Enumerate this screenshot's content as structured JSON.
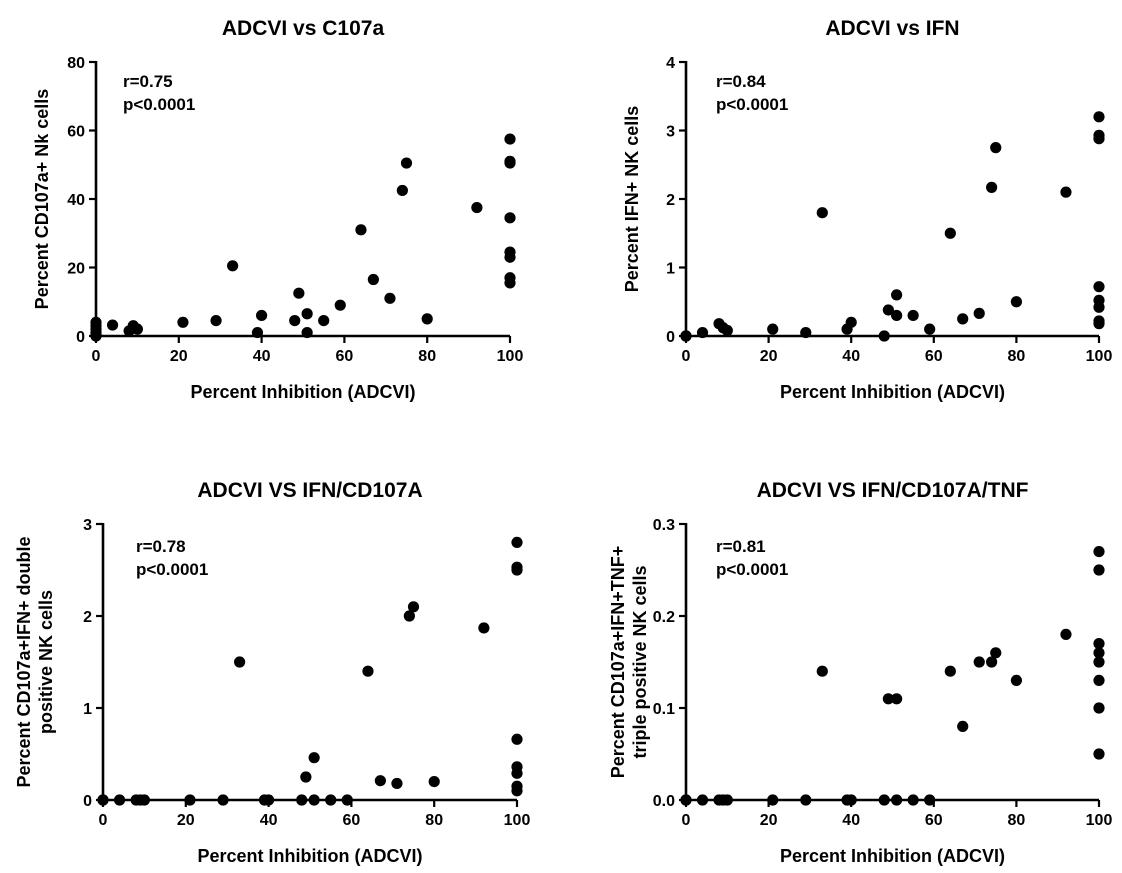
{
  "chart_data": [
    {
      "type": "scatter",
      "title": "ADCVI vs C107a",
      "xlabel": "Percent Inhibition (ADCVI)",
      "ylabel": [
        "Percent CD107a+ Nk cells"
      ],
      "xlim": [
        0,
        100
      ],
      "ylim": [
        0,
        80
      ],
      "xticks": [
        "0",
        "20",
        "40",
        "60",
        "80",
        "100"
      ],
      "yticks": [
        "0",
        "20",
        "40",
        "60",
        "80"
      ],
      "annotation": [
        "r=0.75",
        "p<0.0001"
      ],
      "points": [
        [
          0,
          4
        ],
        [
          0,
          3
        ],
        [
          0,
          2
        ],
        [
          0,
          1
        ],
        [
          0,
          0.5
        ],
        [
          0,
          0
        ],
        [
          4,
          3.2
        ],
        [
          8,
          1.5
        ],
        [
          9,
          3
        ],
        [
          10,
          2
        ],
        [
          21,
          4
        ],
        [
          29,
          4.5
        ],
        [
          33,
          20.5
        ],
        [
          39,
          1
        ],
        [
          40,
          6
        ],
        [
          48,
          4.5
        ],
        [
          49,
          12.5
        ],
        [
          51,
          6.5
        ],
        [
          51,
          1
        ],
        [
          55,
          4.5
        ],
        [
          59,
          9
        ],
        [
          64,
          31
        ],
        [
          67,
          16.5
        ],
        [
          71,
          11
        ],
        [
          74,
          42.5
        ],
        [
          75,
          50.5
        ],
        [
          80,
          5
        ],
        [
          92,
          37.5
        ],
        [
          100,
          57.5
        ],
        [
          100,
          51
        ],
        [
          100,
          50.5
        ],
        [
          100,
          34.5
        ],
        [
          100,
          24.5
        ],
        [
          100,
          23
        ],
        [
          100,
          17
        ],
        [
          100,
          15.5
        ]
      ]
    },
    {
      "type": "scatter",
      "title": "ADCVI vs IFN",
      "xlabel": "Percent Inhibition (ADCVI)",
      "ylabel": [
        "Percent IFN+ NK cells"
      ],
      "xlim": [
        0,
        100
      ],
      "ylim": [
        0,
        4
      ],
      "xticks": [
        "0",
        "20",
        "40",
        "60",
        "80",
        "100"
      ],
      "yticks": [
        "0",
        "1",
        "2",
        "3",
        "4"
      ],
      "annotation": [
        "r=0.84",
        "p<0.0001"
      ],
      "points": [
        [
          0,
          0
        ],
        [
          0,
          0
        ],
        [
          4,
          0.05
        ],
        [
          8,
          0.18
        ],
        [
          9,
          0.12
        ],
        [
          10,
          0.08
        ],
        [
          21,
          0.1
        ],
        [
          29,
          0.05
        ],
        [
          33,
          1.8
        ],
        [
          39,
          0.1
        ],
        [
          40,
          0.2
        ],
        [
          48,
          0
        ],
        [
          49,
          0.38
        ],
        [
          51,
          0.6
        ],
        [
          51,
          0.3
        ],
        [
          55,
          0.3
        ],
        [
          59,
          0.1
        ],
        [
          64,
          1.5
        ],
        [
          67,
          0.25
        ],
        [
          71,
          0.33
        ],
        [
          74,
          2.17
        ],
        [
          75,
          2.75
        ],
        [
          80,
          0.5
        ],
        [
          92,
          2.1
        ],
        [
          100,
          3.2
        ],
        [
          100,
          2.93
        ],
        [
          100,
          2.88
        ],
        [
          100,
          0.72
        ],
        [
          100,
          0.52
        ],
        [
          100,
          0.42
        ],
        [
          100,
          0.22
        ],
        [
          100,
          0.18
        ]
      ]
    },
    {
      "type": "scatter",
      "title": "ADCVI VS IFN/CD107A",
      "xlabel": "Percent Inhibition (ADCVI)",
      "ylabel": [
        "Percent CD107a+IFN+ double",
        "positive NK cells"
      ],
      "xlim": [
        0,
        100
      ],
      "ylim": [
        0,
        3
      ],
      "xticks": [
        "0",
        "20",
        "40",
        "60",
        "80",
        "100"
      ],
      "yticks": [
        "0",
        "1",
        "2",
        "3"
      ],
      "annotation": [
        "r=0.78",
        "p<0.0001"
      ],
      "points": [
        [
          0,
          0
        ],
        [
          0,
          0
        ],
        [
          4,
          0
        ],
        [
          8,
          0
        ],
        [
          9,
          0
        ],
        [
          10,
          0
        ],
        [
          21,
          0
        ],
        [
          29,
          0
        ],
        [
          33,
          1.5
        ],
        [
          39,
          0
        ],
        [
          40,
          0
        ],
        [
          48,
          0
        ],
        [
          49,
          0.25
        ],
        [
          51,
          0.46
        ],
        [
          51,
          0
        ],
        [
          55,
          0
        ],
        [
          59,
          0
        ],
        [
          64,
          1.4
        ],
        [
          67,
          0.21
        ],
        [
          71,
          0.18
        ],
        [
          74,
          2
        ],
        [
          75,
          2.1
        ],
        [
          80,
          0.2
        ],
        [
          92,
          1.87
        ],
        [
          100,
          2.8
        ],
        [
          100,
          2.53
        ],
        [
          100,
          2.5
        ],
        [
          100,
          0.66
        ],
        [
          100,
          0.36
        ],
        [
          100,
          0.29
        ],
        [
          100,
          0.15
        ],
        [
          100,
          0.1
        ]
      ]
    },
    {
      "type": "scatter",
      "title": "ADCVI VS IFN/CD107A/TNF",
      "xlabel": "Percent Inhibition (ADCVI)",
      "ylabel": [
        "Percent CD107a+IFN+TNF+",
        "triple positive NK cells"
      ],
      "xlim": [
        0,
        100
      ],
      "ylim": [
        0,
        0.3
      ],
      "xticks": [
        "0",
        "20",
        "40",
        "60",
        "80",
        "100"
      ],
      "yticks": [
        "0.0",
        "0.1",
        "0.2",
        "0.3"
      ],
      "annotation": [
        "r=0.81",
        "p<0.0001"
      ],
      "points": [
        [
          0,
          0
        ],
        [
          0,
          0
        ],
        [
          4,
          0
        ],
        [
          8,
          0
        ],
        [
          9,
          0
        ],
        [
          10,
          0
        ],
        [
          21,
          0
        ],
        [
          29,
          0
        ],
        [
          33,
          0.14
        ],
        [
          39,
          0
        ],
        [
          40,
          0
        ],
        [
          48,
          0
        ],
        [
          49,
          0.11
        ],
        [
          51,
          0.11
        ],
        [
          51,
          0
        ],
        [
          55,
          0
        ],
        [
          59,
          0
        ],
        [
          64,
          0.14
        ],
        [
          67,
          0.08
        ],
        [
          71,
          0.15
        ],
        [
          74,
          0.15
        ],
        [
          75,
          0.16
        ],
        [
          80,
          0.13
        ],
        [
          92,
          0.18
        ],
        [
          100,
          0.27
        ],
        [
          100,
          0.25
        ],
        [
          100,
          0.17
        ],
        [
          100,
          0.16
        ],
        [
          100,
          0.15
        ],
        [
          100,
          0.13
        ],
        [
          100,
          0.1
        ],
        [
          100,
          0.05
        ]
      ]
    }
  ]
}
